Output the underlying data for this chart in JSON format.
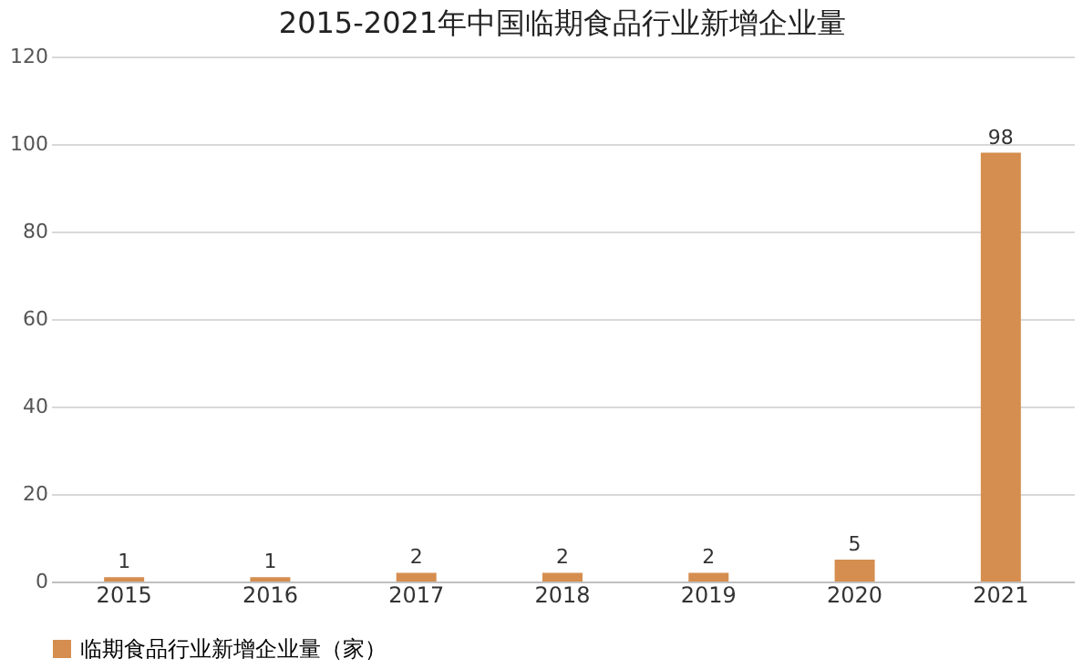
{
  "chart_data": {
    "type": "bar",
    "title": "2015-2021年中国临期食品行业新增企业量",
    "categories": [
      "2015",
      "2016",
      "2017",
      "2018",
      "2019",
      "2020",
      "2021"
    ],
    "series": [
      {
        "name": "临期食品行业新增企业量（家）",
        "color": "#d58e4f",
        "values": [
          1,
          1,
          2,
          2,
          2,
          5,
          98
        ]
      }
    ],
    "ylim": [
      0,
      120
    ],
    "yticks": [
      0,
      20,
      40,
      60,
      80,
      100,
      120
    ],
    "grid": "y",
    "legend": "bottom",
    "data_labels": true
  }
}
